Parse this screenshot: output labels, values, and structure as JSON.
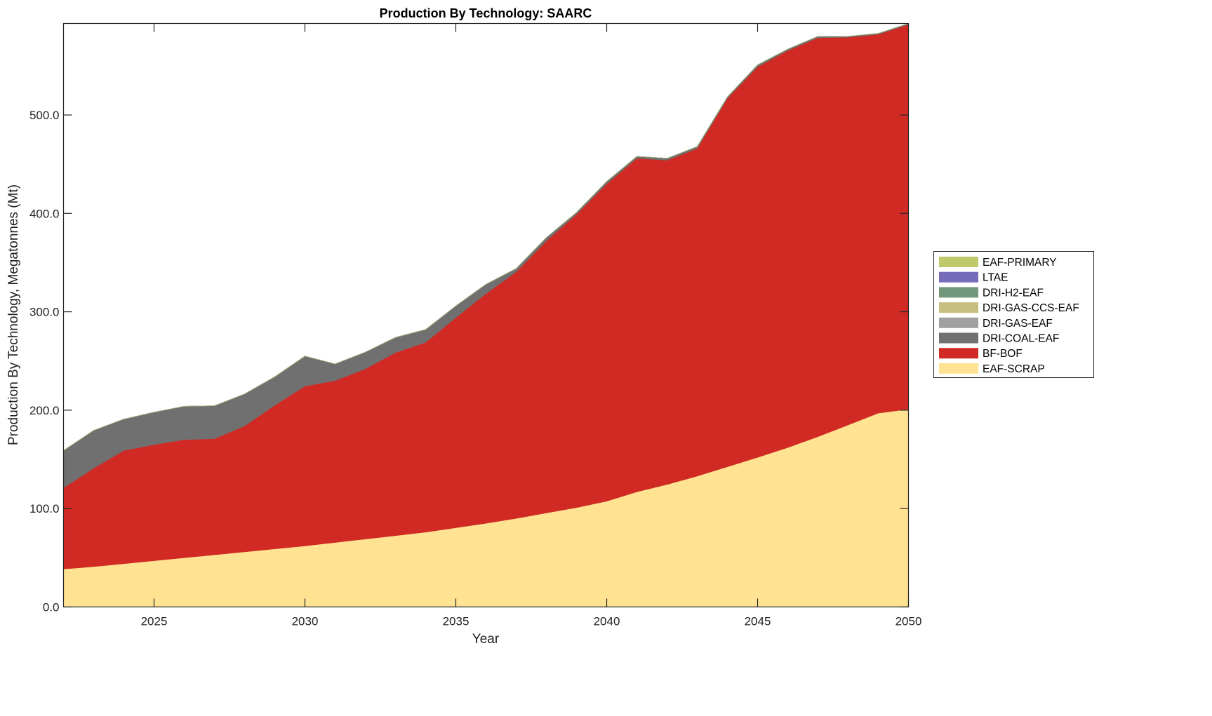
{
  "chart_data": {
    "type": "area",
    "stacked": true,
    "title": "Production By Technology: SAARC",
    "xlabel": "Year",
    "ylabel": "Production By Technology, Megatonnes (Mt)",
    "xlim": [
      2022,
      2050
    ],
    "ylim": [
      0,
      593
    ],
    "xticks": [
      2025,
      2030,
      2035,
      2040,
      2045,
      2050
    ],
    "xtick_labels": [
      "2025",
      "2030",
      "2035",
      "2040",
      "2045",
      "2050"
    ],
    "yticks": [
      0,
      100,
      200,
      300,
      400,
      500
    ],
    "ytick_labels": [
      "0.0",
      "100.0",
      "200.0",
      "300.0",
      "400.0",
      "500.0"
    ],
    "grid": false,
    "legend_position": "right",
    "x": [
      2022,
      2023,
      2024,
      2025,
      2026,
      2027,
      2028,
      2029,
      2030,
      2031,
      2032,
      2033,
      2034,
      2035,
      2036,
      2037,
      2038,
      2039,
      2040,
      2041,
      2042,
      2043,
      2044,
      2045,
      2046,
      2047,
      2048,
      2049,
      2050
    ],
    "series": [
      {
        "name": "EAF-SCRAP",
        "color": "#FFE393",
        "values": [
          38.5,
          41,
          44,
          47,
          50,
          53,
          56,
          59,
          62,
          65.5,
          69,
          72.5,
          76,
          80.5,
          85,
          90,
          95.5,
          101,
          107.5,
          117,
          124.5,
          133,
          142.5,
          152,
          162,
          173,
          185,
          197,
          201
        ]
      },
      {
        "name": "BF-BOF",
        "color": "#D12A24",
        "values": [
          82.5,
          100,
          115,
          118,
          120,
          118,
          128,
          146,
          162.5,
          164.5,
          173,
          186,
          193,
          213.5,
          233.5,
          250.5,
          276.5,
          298,
          322.5,
          339,
          329.5,
          333,
          374.5,
          397,
          403.5,
          405.5,
          394,
          385,
          391
        ]
      },
      {
        "name": "DRI-COAL-EAF",
        "color": "#707070",
        "values": [
          38,
          38.5,
          32,
          33,
          34,
          33.5,
          32.5,
          29,
          30.5,
          17,
          17,
          15.5,
          13,
          12,
          9.5,
          3.5,
          3.5,
          2,
          2.5,
          2,
          2,
          2,
          1.5,
          2,
          1.5,
          1.5,
          1,
          1,
          1
        ]
      },
      {
        "name": "DRI-GAS-EAF",
        "color": "#A0A0A0",
        "values": [
          0,
          0,
          0,
          0,
          0,
          0,
          0,
          0,
          0,
          0,
          0,
          0,
          0,
          0,
          0,
          0,
          0,
          0,
          0,
          0,
          0,
          0,
          0,
          0,
          0,
          0,
          0,
          0,
          0
        ]
      },
      {
        "name": "DRI-GAS-CCS-EAF",
        "color": "#C6BE80",
        "values": [
          0,
          0,
          0,
          0,
          0,
          0,
          0,
          0,
          0,
          0,
          0,
          0,
          0,
          0,
          0,
          0,
          0,
          0,
          0,
          0,
          0,
          0,
          0,
          0,
          0,
          0,
          0,
          0,
          0
        ]
      },
      {
        "name": "DRI-H2-EAF",
        "color": "#73977B",
        "values": [
          0,
          0,
          0,
          0,
          0,
          0,
          0,
          0,
          0,
          0,
          0,
          0,
          0,
          0,
          0,
          0,
          0,
          0,
          0,
          0,
          0,
          0,
          0,
          0,
          0,
          0,
          0,
          0,
          0
        ]
      },
      {
        "name": "LTAE",
        "color": "#776CB9",
        "values": [
          0,
          0,
          0,
          0,
          0,
          0,
          0,
          0,
          0,
          0,
          0,
          0,
          0,
          0,
          0,
          0,
          0,
          0,
          0,
          0,
          0,
          0,
          0,
          0,
          0,
          0,
          0,
          0,
          0
        ]
      },
      {
        "name": "EAF-PRIMARY",
        "color": "#BFC96B",
        "values": [
          0,
          0,
          0,
          0,
          0,
          0,
          0,
          0,
          0,
          0,
          0,
          0,
          0,
          0,
          0,
          0,
          0,
          0,
          0,
          0,
          0,
          0,
          0,
          0,
          0,
          0,
          0,
          0,
          0
        ]
      }
    ],
    "legend_order": [
      "EAF-PRIMARY",
      "LTAE",
      "DRI-H2-EAF",
      "DRI-GAS-CCS-EAF",
      "DRI-GAS-EAF",
      "DRI-COAL-EAF",
      "BF-BOF",
      "EAF-SCRAP"
    ]
  }
}
